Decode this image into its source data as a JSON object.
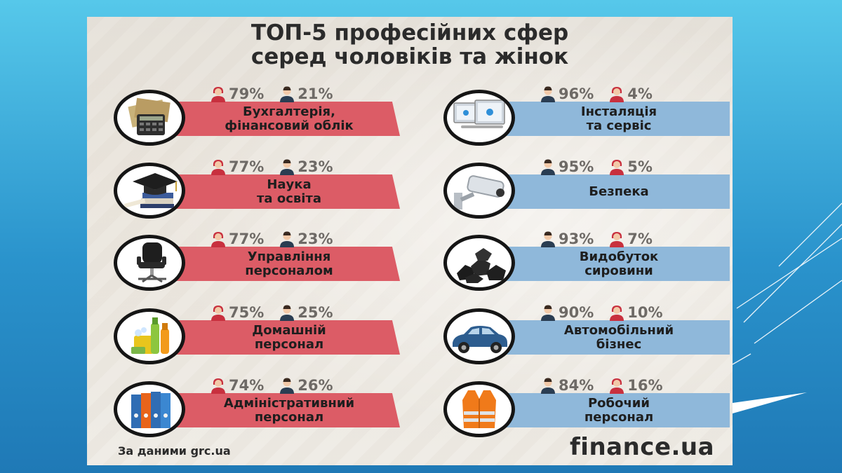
{
  "title": {
    "line1": "ТОП-5 професійних сфер",
    "line2": "серед чоловіків та жінок"
  },
  "colors": {
    "female_band": "#dc5c66",
    "male_band": "#8fb8da",
    "female_icon": "#c8303e",
    "male_icon": "#2a3d52"
  },
  "left_column": [
    {
      "icon": "calculator-money-icon",
      "stats": [
        {
          "icon": "woman-icon",
          "value": "79%"
        },
        {
          "icon": "man-icon",
          "value": "21%"
        }
      ],
      "label": [
        "Бухгалтерія,",
        "фінансовий облік"
      ]
    },
    {
      "icon": "graduation-cap-icon",
      "stats": [
        {
          "icon": "woman-icon",
          "value": "77%"
        },
        {
          "icon": "man-icon",
          "value": "23%"
        }
      ],
      "label": [
        "Наука",
        "та освіта"
      ]
    },
    {
      "icon": "office-chair-icon",
      "stats": [
        {
          "icon": "woman-icon",
          "value": "77%"
        },
        {
          "icon": "man-icon",
          "value": "23%"
        }
      ],
      "label": [
        "Управління",
        "персоналом"
      ]
    },
    {
      "icon": "cleaning-supplies-icon",
      "stats": [
        {
          "icon": "woman-icon",
          "value": "75%"
        },
        {
          "icon": "man-icon",
          "value": "25%"
        }
      ],
      "label": [
        "Домашній",
        "персонал"
      ]
    },
    {
      "icon": "binders-icon",
      "stats": [
        {
          "icon": "woman-icon",
          "value": "74%"
        },
        {
          "icon": "man-icon",
          "value": "26%"
        }
      ],
      "label": [
        "Адміністративний",
        "персонал"
      ]
    }
  ],
  "right_column": [
    {
      "icon": "computer-monitors-icon",
      "stats": [
        {
          "icon": "man-icon",
          "value": "96%"
        },
        {
          "icon": "woman-icon",
          "value": "4%"
        }
      ],
      "label": [
        "Інсталяція",
        "та сервіс"
      ]
    },
    {
      "icon": "security-camera-icon",
      "stats": [
        {
          "icon": "man-icon",
          "value": "95%"
        },
        {
          "icon": "woman-icon",
          "value": "5%"
        }
      ],
      "label": [
        "Безпека"
      ]
    },
    {
      "icon": "coal-icon",
      "stats": [
        {
          "icon": "man-icon",
          "value": "93%"
        },
        {
          "icon": "woman-icon",
          "value": "7%"
        }
      ],
      "label": [
        "Видобуток",
        "сировини"
      ]
    },
    {
      "icon": "car-icon",
      "stats": [
        {
          "icon": "man-icon",
          "value": "90%"
        },
        {
          "icon": "woman-icon",
          "value": "10%"
        }
      ],
      "label": [
        "Автомобільний",
        "бізнес"
      ]
    },
    {
      "icon": "safety-vest-icon",
      "stats": [
        {
          "icon": "man-icon",
          "value": "84%"
        },
        {
          "icon": "woman-icon",
          "value": "16%"
        }
      ],
      "label": [
        "Робочий",
        "персонал"
      ]
    }
  ],
  "footer": {
    "source": "За даними grc.ua",
    "logo": "finance.ua"
  }
}
